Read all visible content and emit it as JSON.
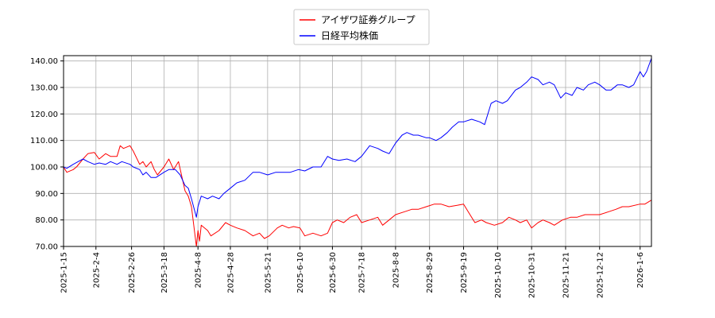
{
  "chart_data": {
    "type": "line",
    "title": "",
    "xlabel": "",
    "ylabel": "",
    "ylim": [
      70,
      142
    ],
    "x_range": [
      "2025-01-15",
      "2026-01-13"
    ],
    "grid": true,
    "legend_placement": "top-center",
    "x_ticks": [
      "2025-1-15",
      "2025-2-4",
      "2025-2-26",
      "2025-3-18",
      "2025-4-8",
      "2025-4-28",
      "2025-5-21",
      "2025-6-10",
      "2025-6-30",
      "2025-7-18",
      "2025-8-8",
      "2025-8-29",
      "2025-9-19",
      "2025-10-10",
      "2025-10-31",
      "2025-11-21",
      "2025-12-12",
      "2026-1-6"
    ],
    "x_tick_dates": [
      "2025-01-15",
      "2025-02-04",
      "2025-02-26",
      "2025-03-18",
      "2025-04-08",
      "2025-04-28",
      "2025-05-21",
      "2025-06-10",
      "2025-06-30",
      "2025-07-18",
      "2025-08-08",
      "2025-08-29",
      "2025-09-19",
      "2025-10-10",
      "2025-10-31",
      "2025-11-21",
      "2025-12-12",
      "2026-01-06"
    ],
    "y_ticks": [
      "70.00",
      "80.00",
      "90.00",
      "100.00",
      "110.00",
      "120.00",
      "130.00",
      "140.00"
    ],
    "y_tick_values": [
      70,
      80,
      90,
      100,
      110,
      120,
      130,
      140
    ],
    "series": [
      {
        "name": "アイザワ証券グループ",
        "color": "#ff0000",
        "points": [
          [
            "2025-01-15",
            100
          ],
          [
            "2025-01-17",
            98
          ],
          [
            "2025-01-21",
            99
          ],
          [
            "2025-01-23",
            100
          ],
          [
            "2025-01-27",
            103
          ],
          [
            "2025-01-30",
            105
          ],
          [
            "2025-02-03",
            105.5
          ],
          [
            "2025-02-06",
            103
          ],
          [
            "2025-02-10",
            105
          ],
          [
            "2025-02-13",
            104
          ],
          [
            "2025-02-17",
            104
          ],
          [
            "2025-02-19",
            108
          ],
          [
            "2025-02-21",
            107
          ],
          [
            "2025-02-25",
            108
          ],
          [
            "2025-02-27",
            106
          ],
          [
            "2025-03-03",
            101
          ],
          [
            "2025-03-05",
            102
          ],
          [
            "2025-03-07",
            100
          ],
          [
            "2025-03-10",
            102
          ],
          [
            "2025-03-12",
            99
          ],
          [
            "2025-03-14",
            97
          ],
          [
            "2025-03-18",
            100
          ],
          [
            "2025-03-21",
            103
          ],
          [
            "2025-03-24",
            99
          ],
          [
            "2025-03-27",
            102
          ],
          [
            "2025-03-31",
            91
          ],
          [
            "2025-04-02",
            89
          ],
          [
            "2025-04-04",
            85
          ],
          [
            "2025-04-07",
            70
          ],
          [
            "2025-04-08",
            76
          ],
          [
            "2025-04-09",
            72
          ],
          [
            "2025-04-10",
            78
          ],
          [
            "2025-04-14",
            76
          ],
          [
            "2025-04-16",
            74
          ],
          [
            "2025-04-21",
            76
          ],
          [
            "2025-04-25",
            79
          ],
          [
            "2025-04-28",
            78
          ],
          [
            "2025-05-02",
            77
          ],
          [
            "2025-05-07",
            76
          ],
          [
            "2025-05-12",
            74
          ],
          [
            "2025-05-16",
            75
          ],
          [
            "2025-05-19",
            73
          ],
          [
            "2025-05-22",
            74
          ],
          [
            "2025-05-27",
            77
          ],
          [
            "2025-05-30",
            78
          ],
          [
            "2025-06-03",
            77
          ],
          [
            "2025-06-06",
            77.5
          ],
          [
            "2025-06-10",
            77
          ],
          [
            "2025-06-13",
            74
          ],
          [
            "2025-06-18",
            75
          ],
          [
            "2025-06-23",
            74
          ],
          [
            "2025-06-27",
            75
          ],
          [
            "2025-06-30",
            79
          ],
          [
            "2025-07-03",
            80
          ],
          [
            "2025-07-07",
            79
          ],
          [
            "2025-07-11",
            81
          ],
          [
            "2025-07-15",
            82
          ],
          [
            "2025-07-18",
            79
          ],
          [
            "2025-07-23",
            80
          ],
          [
            "2025-07-28",
            81
          ],
          [
            "2025-07-31",
            78
          ],
          [
            "2025-08-04",
            80
          ],
          [
            "2025-08-08",
            82
          ],
          [
            "2025-08-13",
            83
          ],
          [
            "2025-08-18",
            84
          ],
          [
            "2025-08-22",
            84
          ],
          [
            "2025-08-27",
            85
          ],
          [
            "2025-09-01",
            86
          ],
          [
            "2025-09-05",
            86
          ],
          [
            "2025-09-10",
            85
          ],
          [
            "2025-09-15",
            85.5
          ],
          [
            "2025-09-19",
            86
          ],
          [
            "2025-09-22",
            83
          ],
          [
            "2025-09-26",
            79
          ],
          [
            "2025-09-30",
            80
          ],
          [
            "2025-10-03",
            79
          ],
          [
            "2025-10-08",
            78
          ],
          [
            "2025-10-13",
            79
          ],
          [
            "2025-10-17",
            81
          ],
          [
            "2025-10-21",
            80
          ],
          [
            "2025-10-24",
            79
          ],
          [
            "2025-10-28",
            80
          ],
          [
            "2025-10-31",
            77
          ],
          [
            "2025-11-04",
            79
          ],
          [
            "2025-11-07",
            80
          ],
          [
            "2025-11-11",
            79
          ],
          [
            "2025-11-14",
            78
          ],
          [
            "2025-11-19",
            80
          ],
          [
            "2025-11-24",
            81
          ],
          [
            "2025-11-28",
            81
          ],
          [
            "2025-12-03",
            82
          ],
          [
            "2025-12-08",
            82
          ],
          [
            "2025-12-12",
            82
          ],
          [
            "2025-12-17",
            83
          ],
          [
            "2025-12-22",
            84
          ],
          [
            "2025-12-26",
            85
          ],
          [
            "2025-12-30",
            85
          ],
          [
            "2026-01-06",
            86
          ],
          [
            "2026-01-09",
            86
          ],
          [
            "2026-01-13",
            87.5
          ]
        ]
      },
      {
        "name": "日経平均株価",
        "color": "#0000ff",
        "points": [
          [
            "2025-01-15",
            100
          ],
          [
            "2025-01-17",
            99.5
          ],
          [
            "2025-01-21",
            101
          ],
          [
            "2025-01-24",
            102
          ],
          [
            "2025-01-27",
            103
          ],
          [
            "2025-01-30",
            102
          ],
          [
            "2025-02-03",
            101
          ],
          [
            "2025-02-06",
            101.5
          ],
          [
            "2025-02-10",
            101
          ],
          [
            "2025-02-13",
            102
          ],
          [
            "2025-02-17",
            101
          ],
          [
            "2025-02-20",
            102
          ],
          [
            "2025-02-25",
            101
          ],
          [
            "2025-02-27",
            100
          ],
          [
            "2025-03-03",
            99
          ],
          [
            "2025-03-05",
            97
          ],
          [
            "2025-03-07",
            98
          ],
          [
            "2025-03-10",
            96
          ],
          [
            "2025-03-13",
            96
          ],
          [
            "2025-03-18",
            98
          ],
          [
            "2025-03-21",
            99
          ],
          [
            "2025-03-25",
            99
          ],
          [
            "2025-03-28",
            97
          ],
          [
            "2025-03-31",
            93
          ],
          [
            "2025-04-02",
            92
          ],
          [
            "2025-04-04",
            88
          ],
          [
            "2025-04-07",
            81
          ],
          [
            "2025-04-08",
            85
          ],
          [
            "2025-04-10",
            89
          ],
          [
            "2025-04-14",
            88
          ],
          [
            "2025-04-17",
            89
          ],
          [
            "2025-04-21",
            88
          ],
          [
            "2025-04-24",
            90
          ],
          [
            "2025-04-28",
            92
          ],
          [
            "2025-05-02",
            94
          ],
          [
            "2025-05-07",
            95
          ],
          [
            "2025-05-12",
            98
          ],
          [
            "2025-05-16",
            98
          ],
          [
            "2025-05-21",
            97
          ],
          [
            "2025-05-26",
            98
          ],
          [
            "2025-05-30",
            98
          ],
          [
            "2025-06-04",
            98
          ],
          [
            "2025-06-09",
            99
          ],
          [
            "2025-06-13",
            98.5
          ],
          [
            "2025-06-18",
            100
          ],
          [
            "2025-06-23",
            100
          ],
          [
            "2025-06-27",
            104
          ],
          [
            "2025-06-30",
            103
          ],
          [
            "2025-07-04",
            102.5
          ],
          [
            "2025-07-09",
            103
          ],
          [
            "2025-07-14",
            102
          ],
          [
            "2025-07-18",
            104
          ],
          [
            "2025-07-23",
            108
          ],
          [
            "2025-07-28",
            107
          ],
          [
            "2025-07-31",
            106
          ],
          [
            "2025-08-04",
            105
          ],
          [
            "2025-08-08",
            109
          ],
          [
            "2025-08-12",
            112
          ],
          [
            "2025-08-15",
            113
          ],
          [
            "2025-08-19",
            112
          ],
          [
            "2025-08-22",
            112
          ],
          [
            "2025-08-27",
            111
          ],
          [
            "2025-08-29",
            111
          ],
          [
            "2025-09-02",
            110
          ],
          [
            "2025-09-05",
            111
          ],
          [
            "2025-09-09",
            113
          ],
          [
            "2025-09-12",
            115
          ],
          [
            "2025-09-16",
            117
          ],
          [
            "2025-09-19",
            117
          ],
          [
            "2025-09-24",
            118
          ],
          [
            "2025-09-29",
            117
          ],
          [
            "2025-10-02",
            116
          ],
          [
            "2025-10-06",
            124
          ],
          [
            "2025-10-09",
            125
          ],
          [
            "2025-10-13",
            124
          ],
          [
            "2025-10-16",
            125
          ],
          [
            "2025-10-21",
            129
          ],
          [
            "2025-10-24",
            130
          ],
          [
            "2025-10-28",
            132
          ],
          [
            "2025-10-31",
            134
          ],
          [
            "2025-11-04",
            133
          ],
          [
            "2025-11-07",
            131
          ],
          [
            "2025-11-11",
            132
          ],
          [
            "2025-11-14",
            131
          ],
          [
            "2025-11-18",
            126
          ],
          [
            "2025-11-21",
            128
          ],
          [
            "2025-11-25",
            127
          ],
          [
            "2025-11-28",
            130
          ],
          [
            "2025-12-02",
            129
          ],
          [
            "2025-12-05",
            131
          ],
          [
            "2025-12-09",
            132
          ],
          [
            "2025-12-12",
            131
          ],
          [
            "2025-12-16",
            129
          ],
          [
            "2025-12-19",
            129
          ],
          [
            "2025-12-23",
            131
          ],
          [
            "2025-12-26",
            131
          ],
          [
            "2025-12-30",
            130
          ],
          [
            "2026-01-02",
            131
          ],
          [
            "2026-01-06",
            136
          ],
          [
            "2026-01-08",
            134
          ],
          [
            "2026-01-10",
            136
          ],
          [
            "2026-01-13",
            141
          ]
        ]
      }
    ]
  }
}
